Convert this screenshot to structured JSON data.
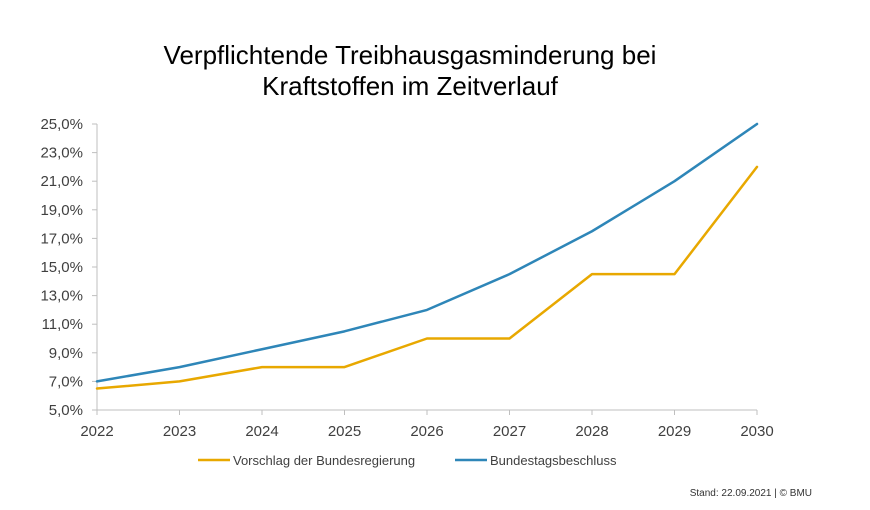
{
  "chart_data": {
    "type": "line",
    "title_lines": [
      "Verpflichtende Treibhausgasminderung bei",
      "Kraftstoffen im Zeitverlauf"
    ],
    "x": [
      "2022",
      "2023",
      "2024",
      "2025",
      "2026",
      "2027",
      "2028",
      "2029",
      "2030"
    ],
    "y_ticks": [
      "5,0%",
      "7,0%",
      "9,0%",
      "11,0%",
      "13,0%",
      "15,0%",
      "17,0%",
      "19,0%",
      "21,0%",
      "23,0%",
      "25,0%"
    ],
    "y_tick_values": [
      5,
      7,
      9,
      11,
      13,
      15,
      17,
      19,
      21,
      23,
      25
    ],
    "ylim": [
      5,
      25
    ],
    "grid": false,
    "legend_position": "bottom",
    "series": [
      {
        "name": "Vorschlag der Bundesregierung",
        "color": "#E8A800",
        "values": [
          6.5,
          7.0,
          8.0,
          8.0,
          10.0,
          10.0,
          14.5,
          14.5,
          22.0
        ]
      },
      {
        "name": "Bundestagsbeschluss",
        "color": "#2E86B8",
        "values": [
          7.0,
          8.0,
          9.25,
          10.5,
          12.0,
          14.5,
          17.5,
          21.0,
          25.0
        ]
      }
    ]
  },
  "footnote": "Stand: 22.09.2021 | © BMU"
}
